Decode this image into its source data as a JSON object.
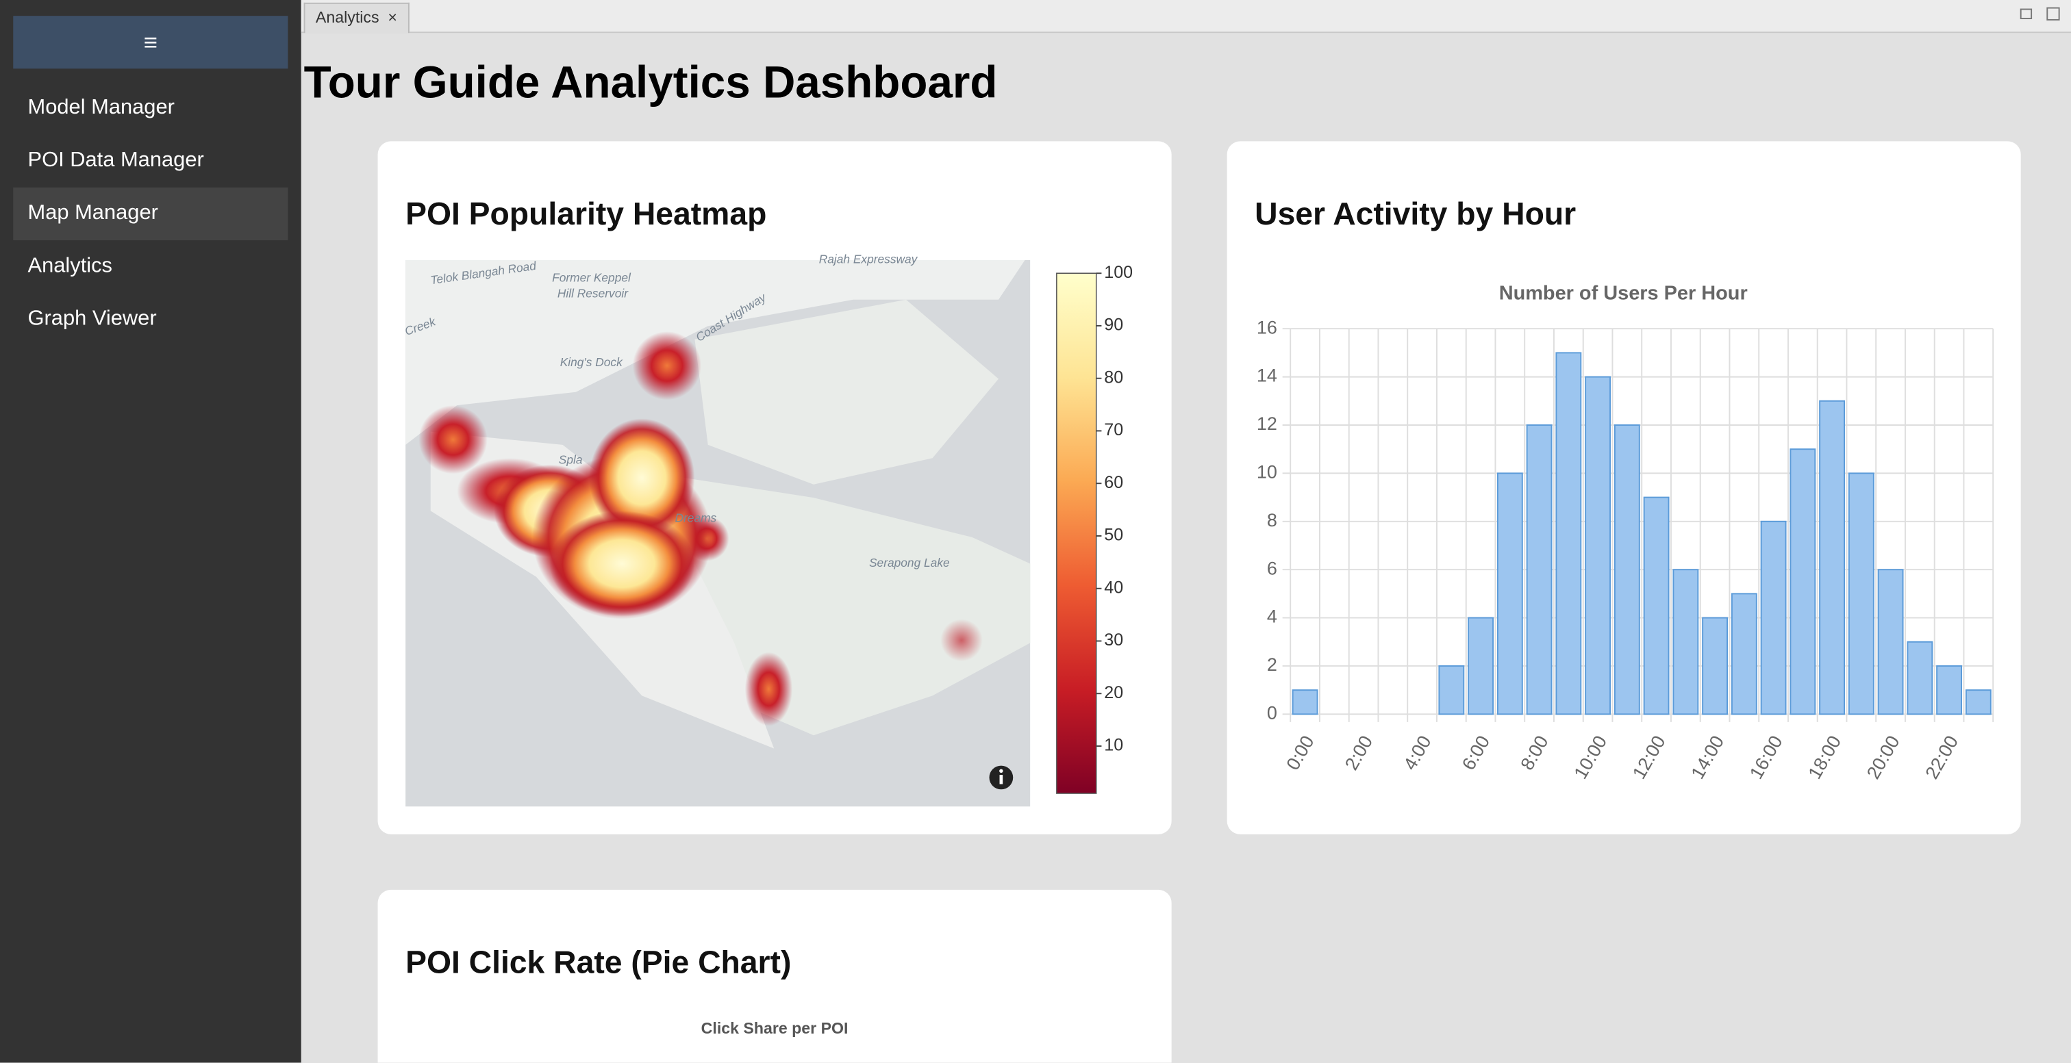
{
  "tab": {
    "label": "Analytics",
    "close": "×"
  },
  "sidebar": {
    "menu_icon": "≡",
    "items": [
      "Model Manager",
      "POI Data Manager",
      "Map Manager",
      "Analytics",
      "Graph Viewer"
    ],
    "highlighted": 2
  },
  "page": {
    "title": "Tour Guide Analytics Dashboard"
  },
  "heatmap_card": {
    "title": "POI Popularity Heatmap",
    "map_labels": [
      "Telok Blangah Road",
      "Former Keppel",
      "Hill Reservoir",
      "King's Dock",
      "Coast Highway",
      "Rajah Expressway",
      "Creek",
      "Spla",
      "Dreams",
      "Serapong Lake"
    ],
    "colorbar": {
      "range": [
        1,
        100
      ],
      "ticks": [
        10,
        20,
        30,
        40,
        50,
        60,
        70,
        80,
        90,
        100
      ]
    }
  },
  "activity_card": {
    "title": "User Activity by Hour"
  },
  "chart_data": {
    "type": "bar",
    "title": "Number of Users Per Hour",
    "categories": [
      "0:00",
      null,
      "2:00",
      null,
      "4:00",
      null,
      "6:00",
      null,
      "8:00",
      null,
      "10:00",
      null,
      "12:00",
      null,
      "14:00",
      null,
      "16:00",
      null,
      "18:00",
      null,
      "20:00",
      null,
      "22:00",
      null
    ],
    "values": [
      1,
      0,
      0,
      0,
      0,
      2,
      4,
      10,
      12,
      15,
      14,
      12,
      9,
      6,
      4,
      5,
      8,
      11,
      13,
      10,
      6,
      3,
      2,
      1
    ],
    "color": "#9cc5ef",
    "ylim": [
      0,
      16
    ],
    "yticks": [
      0,
      2,
      4,
      6,
      8,
      10,
      12,
      14,
      16
    ],
    "grid": true
  },
  "pie_card": {
    "title": "POI Click Rate (Pie Chart)",
    "chart_title": "Click Share per POI"
  }
}
